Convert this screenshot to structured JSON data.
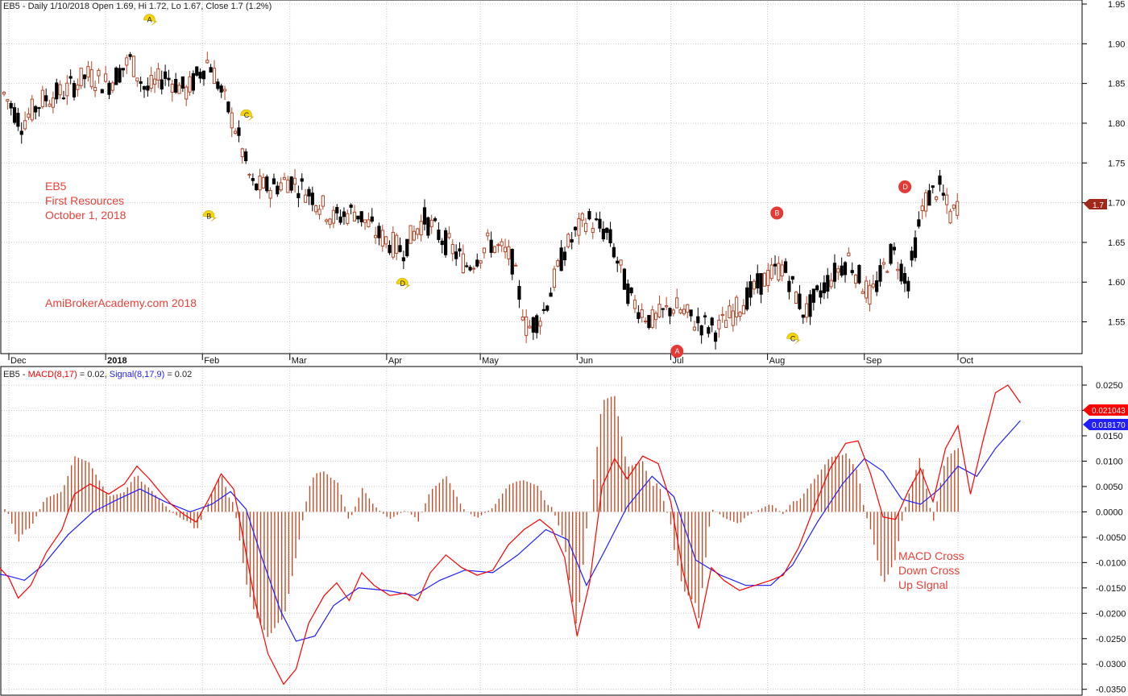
{
  "header": {
    "price_title": "EB5 - Daily 1/10/2018 Open 1.69, Hi 1.72, Lo 1.67, Close 1.7 (1.2%)",
    "macd_prefix": "EB5 - ",
    "macd_label": "MACD(8,17)",
    "macd_value": " = 0.02, ",
    "signal_label": "Signal(8,17,9)",
    "signal_value": " = 0.02"
  },
  "annotations": {
    "stock_code": "EB5",
    "company": "First Resources",
    "date": "October 1, 2018",
    "website": "AmiBrokerAcademy.com  2018",
    "macd_note_1": "MACD Cross",
    "macd_note_2": "Down Cross",
    "macd_note_3": "Up SIgnal"
  },
  "price_tag": "1.7",
  "macd_tag": "0.021043",
  "signal_tag": "0.018170",
  "colors": {
    "up_candle": "#b5472a",
    "down_candle": "#000000",
    "macd": "#ff0000",
    "signal": "#1f1fff",
    "histogram": "#c0502c",
    "annotation": "#e8413a",
    "marker_yellow": "#f5d60a",
    "marker_red": "#e53935",
    "grid": "#c8c8c8"
  },
  "chart_data": [
    {
      "type": "candlestick",
      "title": "EB5 - Daily 1/10/2018 Open 1.69, Hi 1.72, Lo 1.67, Close 1.7 (1.2%)",
      "ylim": [
        1.51,
        1.95
      ],
      "y_ticks": [
        "1.55",
        "1.60",
        "1.65",
        "1.70",
        "1.75",
        "1.80",
        "1.85",
        "1.90",
        "1.95"
      ],
      "x_ticks": [
        {
          "label": "Dec",
          "date": "2017-12-01"
        },
        {
          "label": "2018",
          "date": "2018-01-01"
        },
        {
          "label": "Feb",
          "date": "2018-02-01"
        },
        {
          "label": "Mar",
          "date": "2018-03-01"
        },
        {
          "label": "Apr",
          "date": "2018-04-01"
        },
        {
          "label": "May",
          "date": "2018-05-01"
        },
        {
          "label": "Jun",
          "date": "2018-06-01"
        },
        {
          "label": "Jul",
          "date": "2018-07-01"
        },
        {
          "label": "Aug",
          "date": "2018-08-01"
        },
        {
          "label": "Sep",
          "date": "2018-09-01"
        },
        {
          "label": "Oct",
          "date": "2018-10-01"
        }
      ],
      "close_path": [
        [
          "2017-11-29",
          1.84
        ],
        [
          "2017-12-05",
          1.8
        ],
        [
          "2017-12-12",
          1.83
        ],
        [
          "2017-12-19",
          1.84
        ],
        [
          "2017-12-26",
          1.86
        ],
        [
          "2018-01-02",
          1.85
        ],
        [
          "2018-01-09",
          1.88
        ],
        [
          "2018-01-14",
          1.84
        ],
        [
          "2018-01-20",
          1.86
        ],
        [
          "2018-01-27",
          1.84
        ],
        [
          "2018-02-03",
          1.88
        ],
        [
          "2018-02-07",
          1.84
        ],
        [
          "2018-02-12",
          1.79
        ],
        [
          "2018-02-17",
          1.72
        ],
        [
          "2018-02-24",
          1.72
        ],
        [
          "2018-03-01",
          1.73
        ],
        [
          "2018-03-08",
          1.71
        ],
        [
          "2018-03-15",
          1.68
        ],
        [
          "2018-03-22",
          1.69
        ],
        [
          "2018-03-29",
          1.66
        ],
        [
          "2018-04-06",
          1.64
        ],
        [
          "2018-04-13",
          1.68
        ],
        [
          "2018-04-20",
          1.65
        ],
        [
          "2018-04-27",
          1.62
        ],
        [
          "2018-05-04",
          1.65
        ],
        [
          "2018-05-11",
          1.63
        ],
        [
          "2018-05-16",
          1.54
        ],
        [
          "2018-05-21",
          1.56
        ],
        [
          "2018-05-28",
          1.64
        ],
        [
          "2018-06-04",
          1.68
        ],
        [
          "2018-06-11",
          1.66
        ],
        [
          "2018-06-18",
          1.58
        ],
        [
          "2018-06-25",
          1.55
        ],
        [
          "2018-07-02",
          1.57
        ],
        [
          "2018-07-09",
          1.55
        ],
        [
          "2018-07-16",
          1.54
        ],
        [
          "2018-07-23",
          1.57
        ],
        [
          "2018-07-30",
          1.6
        ],
        [
          "2018-08-06",
          1.62
        ],
        [
          "2018-08-13",
          1.56
        ],
        [
          "2018-08-20",
          1.6
        ],
        [
          "2018-08-27",
          1.63
        ],
        [
          "2018-09-03",
          1.58
        ],
        [
          "2018-09-10",
          1.64
        ],
        [
          "2018-09-15",
          1.6
        ],
        [
          "2018-09-20",
          1.7
        ],
        [
          "2018-09-25",
          1.72
        ],
        [
          "2018-09-29",
          1.68
        ],
        [
          "2018-10-01",
          1.7
        ]
      ],
      "markers": [
        {
          "letter": "A",
          "shape": "tag",
          "date": "2018-01-15",
          "y": 1.93
        },
        {
          "letter": "B",
          "shape": "tag",
          "date": "2018-02-03",
          "y": 1.683
        },
        {
          "letter": "C",
          "shape": "tag",
          "date": "2018-02-15",
          "y": 1.81
        },
        {
          "letter": "D",
          "shape": "tag",
          "date": "2018-04-06",
          "y": 1.598
        },
        {
          "letter": "A",
          "shape": "circle",
          "date": "2018-07-03",
          "y": 1.513
        },
        {
          "letter": "B",
          "shape": "circle",
          "date": "2018-08-04",
          "y": 1.687
        },
        {
          "letter": "C",
          "shape": "tag",
          "date": "2018-08-09",
          "y": 1.529
        },
        {
          "letter": "D",
          "shape": "circle",
          "date": "2018-09-14",
          "y": 1.72
        }
      ],
      "last_close": 1.7
    },
    {
      "type": "line",
      "title": "EB5 - MACD(8,17) = 0.02, Signal(8,17,9) = 0.02",
      "ylim": [
        -0.036,
        0.0285
      ],
      "y_ticks": [
        "0.0250",
        "0.0200",
        "0.0150",
        "0.0100",
        "0.0050",
        "0.0000",
        "-0.0050",
        "-0.0100",
        "-0.0150",
        "-0.0200",
        "-0.0250",
        "-0.0300",
        "-0.0350"
      ],
      "series": [
        {
          "name": "MACD(8,17)",
          "points": [
            [
              "2017-11-25",
              -0.0145
            ],
            [
              "2017-11-28",
              -0.011
            ],
            [
              "2017-12-01",
              -0.013
            ],
            [
              "2017-12-04",
              -0.017
            ],
            [
              "2017-12-08",
              -0.0145
            ],
            [
              "2017-12-13",
              -0.008
            ],
            [
              "2017-12-18",
              -0.0035
            ],
            [
              "2017-12-22",
              0.0035
            ],
            [
              "2017-12-27",
              0.0055
            ],
            [
              "2018-01-02",
              0.0035
            ],
            [
              "2018-01-07",
              0.0055
            ],
            [
              "2018-01-11",
              0.009
            ],
            [
              "2018-01-15",
              0.0065
            ],
            [
              "2018-01-19",
              0.0035
            ],
            [
              "2018-01-22",
              0.0015
            ],
            [
              "2018-01-26",
              -0.0005
            ],
            [
              "2018-01-30",
              -0.002
            ],
            [
              "2018-02-03",
              0.0025
            ],
            [
              "2018-02-07",
              0.0075
            ],
            [
              "2018-02-11",
              0.0045
            ],
            [
              "2018-02-14",
              -0.005
            ],
            [
              "2018-02-18",
              -0.018
            ],
            [
              "2018-02-22",
              -0.028
            ],
            [
              "2018-02-27",
              -0.034
            ],
            [
              "2018-03-03",
              -0.031
            ],
            [
              "2018-03-07",
              -0.022
            ],
            [
              "2018-03-12",
              -0.0165
            ],
            [
              "2018-03-16",
              -0.014
            ],
            [
              "2018-03-20",
              -0.0175
            ],
            [
              "2018-03-24",
              -0.012
            ],
            [
              "2018-03-28",
              -0.0145
            ],
            [
              "2018-04-02",
              -0.0165
            ],
            [
              "2018-04-07",
              -0.016
            ],
            [
              "2018-04-11",
              -0.0175
            ],
            [
              "2018-04-15",
              -0.012
            ],
            [
              "2018-04-20",
              -0.0085
            ],
            [
              "2018-04-25",
              -0.011
            ],
            [
              "2018-04-30",
              -0.0125
            ],
            [
              "2018-05-05",
              -0.0115
            ],
            [
              "2018-05-10",
              -0.0065
            ],
            [
              "2018-05-15",
              -0.0035
            ],
            [
              "2018-05-20",
              -0.0015
            ],
            [
              "2018-05-24",
              -0.0035
            ],
            [
              "2018-05-28",
              -0.009
            ],
            [
              "2018-06-01",
              -0.0245
            ],
            [
              "2018-06-05",
              -0.014
            ],
            [
              "2018-06-09",
              0.005
            ],
            [
              "2018-06-13",
              0.0105
            ],
            [
              "2018-06-17",
              0.0065
            ],
            [
              "2018-06-22",
              0.011
            ],
            [
              "2018-06-27",
              0.0095
            ],
            [
              "2018-07-01",
              0.002
            ],
            [
              "2018-07-05",
              -0.012
            ],
            [
              "2018-07-10",
              -0.023
            ],
            [
              "2018-07-14",
              -0.011
            ],
            [
              "2018-07-18",
              -0.0135
            ],
            [
              "2018-07-23",
              -0.0155
            ],
            [
              "2018-07-28",
              -0.0145
            ],
            [
              "2018-08-02",
              -0.0135
            ],
            [
              "2018-08-06",
              -0.0125
            ],
            [
              "2018-08-11",
              -0.007
            ],
            [
              "2018-08-16",
              0.001
            ],
            [
              "2018-08-21",
              0.0085
            ],
            [
              "2018-08-26",
              0.0135
            ],
            [
              "2018-08-30",
              0.014
            ],
            [
              "2018-09-03",
              0.0075
            ],
            [
              "2018-09-07",
              -0.001
            ],
            [
              "2018-09-11",
              -0.0015
            ],
            [
              "2018-09-15",
              0.004
            ],
            [
              "2018-09-19",
              0.0085
            ],
            [
              "2018-09-23",
              0.002
            ],
            [
              "2018-09-27",
              0.0125
            ],
            [
              "2018-10-01",
              0.017
            ],
            [
              "2018-10-05",
              0.0035
            ],
            [
              "2018-10-09",
              0.014
            ],
            [
              "2018-10-13",
              0.0235
            ],
            [
              "2018-10-17",
              0.025
            ],
            [
              "2018-10-21",
              0.0215
            ]
          ]
        },
        {
          "name": "Signal(8,17,9)",
          "points": [
            [
              "2017-11-25",
              -0.012
            ],
            [
              "2017-11-30",
              -0.0125
            ],
            [
              "2017-12-06",
              -0.0135
            ],
            [
              "2017-12-12",
              -0.0105
            ],
            [
              "2017-12-20",
              -0.0045
            ],
            [
              "2017-12-28",
              0.0
            ],
            [
              "2018-01-05",
              0.0025
            ],
            [
              "2018-01-12",
              0.0045
            ],
            [
              "2018-01-20",
              0.002
            ],
            [
              "2018-01-28",
              0.0
            ],
            [
              "2018-02-04",
              0.0015
            ],
            [
              "2018-02-10",
              0.004
            ],
            [
              "2018-02-15",
              0.0005
            ],
            [
              "2018-02-20",
              -0.009
            ],
            [
              "2018-02-26",
              -0.0195
            ],
            [
              "2018-03-03",
              -0.0255
            ],
            [
              "2018-03-09",
              -0.0245
            ],
            [
              "2018-03-15",
              -0.0185
            ],
            [
              "2018-03-23",
              -0.015
            ],
            [
              "2018-04-01",
              -0.0155
            ],
            [
              "2018-04-10",
              -0.0165
            ],
            [
              "2018-04-18",
              -0.0135
            ],
            [
              "2018-04-26",
              -0.0115
            ],
            [
              "2018-05-05",
              -0.012
            ],
            [
              "2018-05-13",
              -0.0085
            ],
            [
              "2018-05-22",
              -0.0035
            ],
            [
              "2018-05-29",
              -0.0055
            ],
            [
              "2018-06-04",
              -0.0145
            ],
            [
              "2018-06-10",
              -0.0075
            ],
            [
              "2018-06-17",
              0.001
            ],
            [
              "2018-06-25",
              0.007
            ],
            [
              "2018-07-02",
              0.003
            ],
            [
              "2018-07-09",
              -0.0095
            ],
            [
              "2018-07-17",
              -0.0125
            ],
            [
              "2018-07-25",
              -0.0145
            ],
            [
              "2018-08-02",
              -0.0145
            ],
            [
              "2018-08-09",
              -0.0105
            ],
            [
              "2018-08-17",
              -0.002
            ],
            [
              "2018-08-25",
              0.0055
            ],
            [
              "2018-09-01",
              0.0105
            ],
            [
              "2018-09-07",
              0.008
            ],
            [
              "2018-09-13",
              0.0025
            ],
            [
              "2018-09-19",
              0.0015
            ],
            [
              "2018-09-25",
              0.0045
            ],
            [
              "2018-10-01",
              0.009
            ],
            [
              "2018-10-07",
              0.007
            ],
            [
              "2018-10-13",
              0.0125
            ],
            [
              "2018-10-21",
              0.018
            ]
          ]
        }
      ],
      "histogram_series": "MACD - Signal"
    }
  ]
}
